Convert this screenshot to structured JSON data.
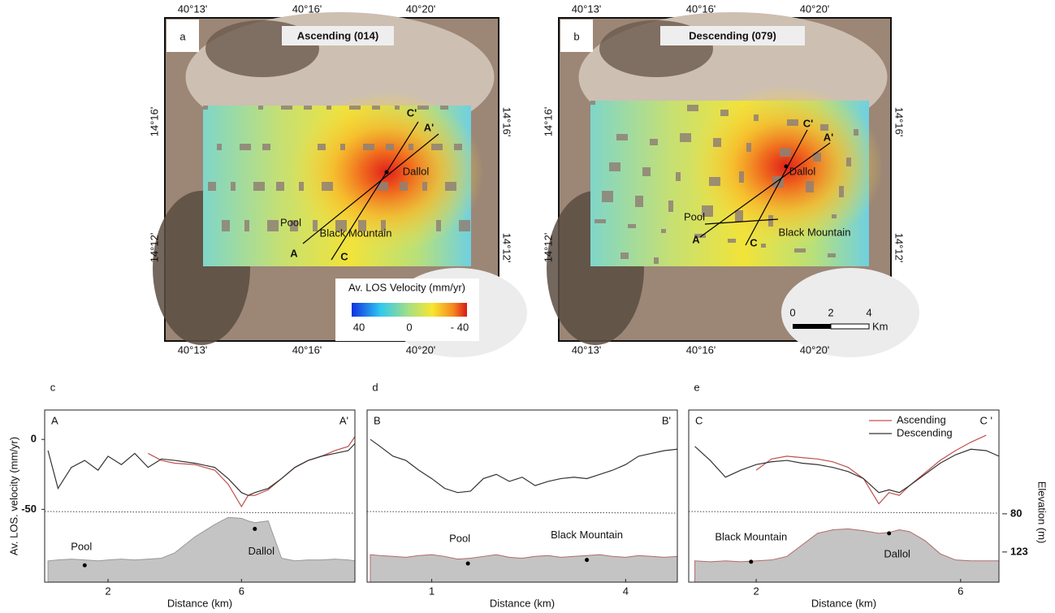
{
  "maps": [
    {
      "panel": "a",
      "title": "Ascending (014)",
      "top_ticks": [
        "40°13'",
        "40°16'",
        "40°20'"
      ],
      "bottom_ticks": [
        "40°13'",
        "40°16'",
        "40°20'"
      ],
      "left_ticks": [
        "14°16'",
        "14°12'"
      ],
      "right_ticks": [
        "14°16'",
        "14°12'"
      ],
      "places": [
        "C'",
        "A'",
        "Dallol",
        "Pool",
        "Black Mountain",
        "A",
        "C"
      ]
    },
    {
      "panel": "b",
      "title": "Descending (079)",
      "top_ticks": [
        "40°13'",
        "40°16'",
        "40°20'"
      ],
      "bottom_ticks": [
        "40°13'",
        "40°16'",
        "40°20'"
      ],
      "left_ticks": [
        "14°16'",
        "14°12'"
      ],
      "right_ticks": [
        "14°16'",
        "14°12'"
      ],
      "places": [
        "C'",
        "A'",
        "Dallol",
        "Pool",
        "Black Mountain",
        "A",
        "C"
      ]
    }
  ],
  "colorbar": {
    "title": "Av. LOS Velocity (mm/yr)",
    "ticks": [
      "40",
      "0",
      "- 40"
    ]
  },
  "scalebar": {
    "ticks": [
      "0",
      "2",
      "4"
    ],
    "unit": "Km"
  },
  "chart_data": [
    {
      "type": "line",
      "panel": "c",
      "corner_labels": [
        "A",
        "A'"
      ],
      "x_label": "Distance (km)",
      "y_label": "Av. LOS. velocity (mm/yr)",
      "x": [
        0.2,
        0.5,
        0.9,
        1.3,
        1.7,
        2.0,
        2.4,
        2.8,
        3.2,
        3.6,
        4.0,
        4.6,
        5.2,
        5.6,
        6.0,
        6.2,
        6.4,
        6.8,
        7.2,
        7.6,
        8.0,
        8.4,
        8.8,
        9.2,
        9.4
      ],
      "xlim": [
        0.1,
        9.4
      ],
      "xticks": [
        2,
        6
      ],
      "ylim": [
        -102,
        21
      ],
      "yticks": [
        0,
        -50
      ],
      "y2lim": [
        157,
        -37
      ],
      "series": [
        {
          "color": "#c0504d",
          "values": [
            null,
            null,
            null,
            null,
            null,
            null,
            null,
            null,
            -10,
            -15,
            -17,
            -18,
            -22,
            -32,
            -48,
            -40,
            -40,
            -36,
            -28,
            -20,
            -15,
            -12,
            -8,
            -5,
            2
          ]
        },
        {
          "color": "#333333",
          "values": [
            -8,
            -35,
            -20,
            -15,
            -22,
            -12,
            -18,
            -10,
            -20,
            -14,
            -15,
            -17,
            -20,
            -28,
            -38,
            -40,
            -38,
            -35,
            -28,
            -20,
            -15,
            -12,
            -10,
            -8,
            -3
          ]
        },
        {
          "color": "#c4c4c4",
          "axis": "y2",
          "values": [
            133,
            132,
            131,
            132,
            133,
            132,
            131,
            132,
            131,
            130,
            124,
            106,
            92,
            84,
            85,
            88,
            90,
            88,
            130,
            133,
            132,
            132,
            131,
            132,
            133
          ]
        }
      ],
      "annotations": [
        {
          "text": "Pool",
          "x": 1.3,
          "y2": 138
        },
        {
          "text": "Dallol",
          "x": 6.4,
          "y2": 97
        }
      ]
    },
    {
      "type": "line",
      "panel": "d",
      "corner_labels": [
        "B",
        "B'"
      ],
      "x_label": "Distance (km)",
      "x": [
        0.05,
        0.2,
        0.4,
        0.6,
        0.8,
        1.0,
        1.2,
        1.4,
        1.6,
        1.8,
        2.0,
        2.2,
        2.4,
        2.6,
        2.8,
        3.0,
        3.2,
        3.4,
        3.6,
        3.8,
        4.0,
        4.2,
        4.4,
        4.6,
        4.8
      ],
      "xlim": [
        0,
        4.8
      ],
      "xticks": [
        1,
        4
      ],
      "ylim": [
        -102,
        21
      ],
      "y2lim": [
        157,
        -37
      ],
      "series": [
        {
          "color": "#333333",
          "values": [
            0,
            -5,
            -12,
            -15,
            -22,
            -28,
            -35,
            -38,
            -37,
            -28,
            -25,
            -30,
            -27,
            -33,
            -30,
            -28,
            -27,
            -28,
            -25,
            -22,
            -18,
            -12,
            -10,
            -8,
            -7
          ]
        },
        {
          "color": "#c4c4c4",
          "axis": "y2",
          "values": [
            126,
            127,
            128,
            129,
            127,
            126,
            128,
            131,
            130,
            128,
            126,
            129,
            130,
            128,
            127,
            129,
            128,
            127,
            126,
            128,
            129,
            127,
            128,
            129,
            128
          ]
        }
      ],
      "annotations": [
        {
          "text": "Pool",
          "x": 1.56,
          "y2": 136
        },
        {
          "text": "Black Mountain",
          "x": 3.4,
          "y2": 132
        }
      ]
    },
    {
      "type": "line",
      "panel": "e",
      "corner_labels": [
        "C",
        "C '"
      ],
      "x_label": "Distance (km)",
      "y2_label": "Elevation (m)",
      "x": [
        0.8,
        1.1,
        1.4,
        1.7,
        2.0,
        2.3,
        2.6,
        2.9,
        3.2,
        3.5,
        3.8,
        4.1,
        4.4,
        4.6,
        4.8,
        5.0,
        5.3,
        5.6,
        5.9,
        6.2,
        6.5,
        6.75
      ],
      "xlim": [
        0.68,
        6.75
      ],
      "xticks": [
        2,
        6
      ],
      "ylim": [
        -102,
        21
      ],
      "y2lim": [
        157,
        -37
      ],
      "y2ticks": [
        80,
        123
      ],
      "legend": "top-right",
      "series": [
        {
          "name": "Ascending",
          "color": "#c0504d",
          "values": [
            null,
            null,
            null,
            null,
            -22,
            -14,
            -12,
            -13,
            -14,
            -16,
            -20,
            -28,
            -46,
            -38,
            -40,
            -33,
            -24,
            -15,
            -8,
            -2,
            3,
            null
          ]
        },
        {
          "name": "Descending",
          "color": "#333333",
          "values": [
            -5,
            -15,
            -27,
            -22,
            -18,
            -16,
            -15,
            -17,
            -18,
            -20,
            -23,
            -28,
            -38,
            -36,
            -38,
            -33,
            -25,
            -17,
            -11,
            -7,
            -8,
            -12
          ]
        },
        {
          "color": "#c4c4c4",
          "axis": "y2",
          "values": [
            133,
            134,
            133,
            134,
            133,
            132,
            128,
            115,
            102,
            98,
            97,
            99,
            102,
            101,
            98,
            100,
            110,
            125,
            132,
            133,
            133,
            133
          ]
        }
      ],
      "annotations": [
        {
          "text": "Black Mountain",
          "x": 1.9,
          "y2": 134
        },
        {
          "text": "Dallol",
          "x": 4.6,
          "y2": 102
        }
      ]
    }
  ]
}
